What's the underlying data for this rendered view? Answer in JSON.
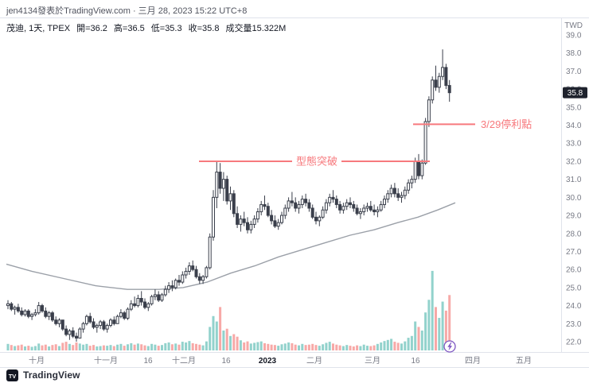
{
  "header": {
    "attribution": "jen4134發表於TradingView.com · 三月 28, 2023 15:22 UTC+8",
    "currency": "TWD"
  },
  "symbol": {
    "title": "茂迪, 1天, TPEX",
    "fields": [
      "開=36.2",
      "高=36.5",
      "低=35.3",
      "收=35.8",
      "成交量15.322M"
    ]
  },
  "footer": {
    "brand": "TradingView"
  },
  "chart_data": {
    "type": "candlestick",
    "symbol": "茂迪",
    "interval": "1天",
    "exchange": "TPEX",
    "last_ohlc": {
      "open": 36.2,
      "high": 36.5,
      "low": 35.3,
      "close": 35.8,
      "volume": "15.322M"
    },
    "current_price": {
      "value": "35.8",
      "price": 35.8
    },
    "y_axis": {
      "currency": "TWD",
      "min": 22.0,
      "max": 39.0,
      "labels": [
        "39.0",
        "38.0",
        "37.0",
        "36.0",
        "35.0",
        "34.0",
        "33.0",
        "32.0",
        "31.0",
        "30.0",
        "29.0",
        "28.0",
        "27.0",
        "26.0",
        "25.0",
        "24.0",
        "23.0",
        "22.0"
      ]
    },
    "x_ticks": [
      {
        "label": "十月",
        "x": 46,
        "strong": false
      },
      {
        "label": "十一月",
        "x": 133,
        "strong": false
      },
      {
        "label": "16",
        "x": 186,
        "strong": false
      },
      {
        "label": "十二月",
        "x": 231,
        "strong": false
      },
      {
        "label": "16",
        "x": 284,
        "strong": false
      },
      {
        "label": "2023",
        "x": 336,
        "strong": true
      },
      {
        "label": "二月",
        "x": 395,
        "strong": false
      },
      {
        "label": "三月",
        "x": 468,
        "strong": false
      },
      {
        "label": "16",
        "x": 522,
        "strong": false
      },
      {
        "label": "四月",
        "x": 594,
        "strong": false
      },
      {
        "label": "五月",
        "x": 658,
        "strong": false
      }
    ],
    "annotations": {
      "pattern_breakout": {
        "label": "型態突破",
        "price": 32.0,
        "x1": 250,
        "x2": 540,
        "label_x": 398
      },
      "take_profit": {
        "label": "3/29停利點",
        "price": 34.05,
        "x1": 519,
        "x2": 597,
        "label_x": 604
      }
    },
    "ma": [
      [
        8,
        26.3
      ],
      [
        40,
        25.9
      ],
      [
        80,
        25.5
      ],
      [
        120,
        25.1
      ],
      [
        160,
        24.9
      ],
      [
        200,
        24.9
      ],
      [
        230,
        25.0
      ],
      [
        260,
        25.3
      ],
      [
        290,
        25.8
      ],
      [
        320,
        26.2
      ],
      [
        350,
        26.7
      ],
      [
        380,
        27.1
      ],
      [
        410,
        27.5
      ],
      [
        440,
        27.9
      ],
      [
        470,
        28.2
      ],
      [
        500,
        28.6
      ],
      [
        525,
        28.9
      ],
      [
        550,
        29.3
      ],
      [
        572,
        29.7
      ]
    ],
    "candles": [
      [
        24.0,
        24.3,
        23.8,
        24.1,
        1.8
      ],
      [
        24.1,
        24.2,
        23.7,
        23.8,
        1.5
      ],
      [
        23.8,
        24.0,
        23.5,
        23.9,
        1.2
      ],
      [
        23.9,
        24.1,
        23.6,
        23.7,
        1.4
      ],
      [
        23.7,
        23.9,
        23.4,
        23.5,
        1.6
      ],
      [
        23.5,
        23.8,
        23.4,
        23.7,
        1.1
      ],
      [
        23.7,
        23.8,
        23.3,
        23.4,
        1.3
      ],
      [
        23.4,
        23.6,
        23.2,
        23.5,
        1.0
      ],
      [
        23.5,
        23.8,
        23.4,
        23.6,
        1.2
      ],
      [
        23.6,
        24.2,
        23.5,
        24.0,
        1.9
      ],
      [
        24.0,
        24.1,
        23.6,
        23.7,
        1.4
      ],
      [
        23.7,
        23.9,
        23.3,
        23.4,
        1.6
      ],
      [
        23.4,
        23.7,
        23.2,
        23.6,
        1.1
      ],
      [
        23.6,
        23.7,
        23.1,
        23.2,
        1.5
      ],
      [
        23.2,
        23.4,
        22.9,
        23.0,
        1.7
      ],
      [
        23.0,
        23.3,
        22.8,
        23.2,
        1.2
      ],
      [
        23.2,
        23.2,
        22.6,
        22.7,
        2.1
      ],
      [
        22.7,
        22.9,
        22.3,
        22.4,
        2.4
      ],
      [
        22.4,
        22.7,
        22.1,
        22.6,
        1.8
      ],
      [
        22.6,
        22.8,
        22.2,
        22.3,
        1.5
      ],
      [
        22.3,
        22.5,
        22.0,
        22.2,
        2.2
      ],
      [
        22.2,
        22.8,
        22.2,
        22.7,
        1.9
      ],
      [
        22.7,
        23.1,
        22.5,
        23.0,
        1.6
      ],
      [
        23.0,
        23.5,
        22.9,
        23.4,
        1.8
      ],
      [
        23.4,
        23.6,
        23.0,
        23.1,
        1.3
      ],
      [
        23.1,
        23.3,
        22.7,
        22.8,
        1.5
      ],
      [
        22.8,
        23.0,
        22.5,
        22.9,
        1.1
      ],
      [
        22.9,
        23.2,
        22.7,
        23.1,
        1.2
      ],
      [
        23.1,
        23.2,
        22.6,
        22.7,
        1.4
      ],
      [
        22.7,
        23.0,
        22.5,
        22.9,
        1.3
      ],
      [
        22.9,
        23.3,
        22.8,
        23.2,
        1.5
      ],
      [
        23.2,
        23.4,
        22.9,
        23.0,
        1.2
      ],
      [
        23.0,
        23.5,
        23.0,
        23.4,
        1.6
      ],
      [
        23.4,
        23.8,
        23.3,
        23.6,
        1.8
      ],
      [
        23.6,
        23.7,
        23.2,
        23.3,
        1.3
      ],
      [
        23.3,
        23.9,
        23.2,
        23.8,
        1.7
      ],
      [
        23.8,
        24.3,
        23.7,
        24.1,
        2.0
      ],
      [
        24.1,
        24.5,
        23.9,
        24.0,
        1.6
      ],
      [
        24.0,
        24.6,
        23.9,
        24.4,
        1.9
      ],
      [
        24.4,
        24.8,
        24.0,
        24.2,
        1.7
      ],
      [
        24.2,
        24.4,
        23.8,
        23.9,
        1.4
      ],
      [
        23.9,
        24.2,
        23.7,
        24.1,
        1.2
      ],
      [
        24.1,
        24.6,
        24.0,
        24.5,
        1.8
      ],
      [
        24.5,
        24.9,
        24.3,
        24.6,
        1.6
      ],
      [
        24.6,
        24.8,
        24.2,
        24.3,
        1.3
      ],
      [
        24.3,
        24.7,
        24.2,
        24.6,
        1.5
      ],
      [
        24.6,
        25.1,
        24.5,
        24.9,
        2.0
      ],
      [
        24.9,
        25.3,
        24.7,
        25.1,
        2.2
      ],
      [
        25.1,
        25.4,
        24.8,
        25.0,
        1.7
      ],
      [
        25.0,
        25.5,
        24.9,
        25.4,
        1.9
      ],
      [
        25.4,
        25.7,
        25.1,
        25.3,
        1.6
      ],
      [
        25.3,
        25.9,
        25.2,
        25.7,
        2.4
      ],
      [
        25.7,
        26.1,
        25.5,
        25.9,
        2.2
      ],
      [
        25.9,
        26.4,
        25.7,
        26.2,
        2.6
      ],
      [
        26.2,
        26.5,
        25.9,
        26.0,
        2.0
      ],
      [
        26.0,
        26.2,
        25.5,
        25.6,
        1.8
      ],
      [
        25.6,
        25.8,
        25.2,
        25.4,
        1.6
      ],
      [
        25.4,
        25.7,
        25.2,
        25.6,
        1.4
      ],
      [
        25.6,
        26.2,
        25.5,
        26.1,
        2.5
      ],
      [
        26.1,
        28.0,
        26.0,
        27.8,
        6.5
      ],
      [
        27.8,
        30.4,
        27.6,
        30.0,
        9.5
      ],
      [
        30.0,
        32.0,
        29.4,
        31.4,
        8.0
      ],
      [
        31.4,
        31.9,
        30.2,
        30.5,
        12.0
      ],
      [
        30.5,
        31.4,
        29.8,
        31.0,
        5.5
      ],
      [
        31.0,
        31.2,
        29.6,
        29.8,
        6.0
      ],
      [
        29.8,
        30.6,
        29.3,
        30.2,
        4.0
      ],
      [
        30.2,
        30.4,
        28.9,
        29.1,
        4.5
      ],
      [
        29.1,
        29.5,
        28.3,
        28.5,
        3.8
      ],
      [
        28.5,
        29.0,
        28.1,
        28.8,
        2.8
      ],
      [
        28.8,
        29.2,
        28.4,
        28.6,
        2.2
      ],
      [
        28.6,
        28.9,
        28.0,
        28.2,
        2.5
      ],
      [
        28.2,
        28.7,
        28.0,
        28.5,
        1.9
      ],
      [
        28.5,
        29.0,
        28.3,
        28.8,
        2.1
      ],
      [
        28.8,
        29.4,
        28.6,
        29.2,
        2.3
      ],
      [
        29.2,
        29.8,
        29.0,
        29.6,
        2.5
      ],
      [
        29.6,
        30.1,
        29.3,
        29.5,
        2.0
      ],
      [
        29.5,
        29.7,
        28.9,
        29.0,
        1.8
      ],
      [
        29.0,
        29.3,
        28.5,
        28.7,
        1.6
      ],
      [
        28.7,
        29.0,
        28.3,
        28.4,
        1.5
      ],
      [
        28.4,
        28.8,
        28.2,
        28.6,
        1.3
      ],
      [
        28.6,
        29.2,
        28.5,
        29.0,
        1.7
      ],
      [
        29.0,
        29.6,
        28.8,
        29.4,
        1.9
      ],
      [
        29.4,
        30.0,
        29.2,
        29.8,
        2.2
      ],
      [
        29.8,
        30.3,
        29.5,
        29.7,
        2.0
      ],
      [
        29.7,
        30.0,
        29.2,
        29.4,
        1.6
      ],
      [
        29.4,
        29.8,
        29.1,
        29.6,
        1.4
      ],
      [
        29.6,
        30.1,
        29.4,
        29.9,
        1.8
      ],
      [
        29.9,
        30.2,
        29.5,
        29.7,
        1.5
      ],
      [
        29.7,
        29.9,
        29.2,
        29.4,
        1.6
      ],
      [
        29.4,
        29.6,
        28.8,
        28.9,
        1.8
      ],
      [
        28.9,
        29.2,
        28.5,
        28.7,
        1.5
      ],
      [
        28.7,
        29.0,
        28.4,
        28.9,
        1.3
      ],
      [
        28.9,
        29.5,
        28.8,
        29.3,
        1.7
      ],
      [
        29.3,
        29.9,
        29.1,
        29.7,
        2.1
      ],
      [
        29.7,
        30.2,
        29.5,
        30.0,
        2.4
      ],
      [
        30.0,
        30.4,
        29.7,
        29.9,
        1.9
      ],
      [
        29.9,
        30.1,
        29.4,
        29.6,
        1.6
      ],
      [
        29.6,
        29.8,
        29.1,
        29.3,
        1.4
      ],
      [
        29.3,
        29.7,
        29.1,
        29.5,
        1.2
      ],
      [
        29.5,
        29.9,
        29.3,
        29.7,
        1.5
      ],
      [
        29.7,
        30.0,
        29.4,
        29.6,
        1.3
      ],
      [
        29.6,
        29.8,
        29.2,
        29.4,
        1.1
      ],
      [
        29.4,
        29.6,
        29.0,
        29.1,
        1.4
      ],
      [
        29.1,
        29.4,
        28.8,
        29.2,
        1.2
      ],
      [
        29.2,
        29.6,
        29.0,
        29.4,
        1.6
      ],
      [
        29.4,
        29.7,
        29.2,
        29.5,
        1.3
      ],
      [
        29.5,
        29.8,
        29.2,
        29.3,
        1.2
      ],
      [
        29.3,
        29.6,
        29.0,
        29.2,
        1.4
      ],
      [
        29.2,
        29.5,
        28.9,
        29.3,
        1.8
      ],
      [
        29.3,
        29.8,
        29.2,
        29.6,
        2.2
      ],
      [
        29.6,
        30.1,
        29.4,
        29.9,
        2.6
      ],
      [
        29.9,
        30.4,
        29.7,
        30.2,
        2.9
      ],
      [
        30.2,
        30.7,
        30.0,
        30.5,
        3.2
      ],
      [
        30.5,
        30.8,
        30.0,
        30.2,
        2.4
      ],
      [
        30.2,
        30.5,
        29.8,
        30.0,
        2.1
      ],
      [
        30.0,
        30.3,
        29.7,
        30.1,
        1.9
      ],
      [
        30.1,
        30.6,
        29.9,
        30.4,
        2.5
      ],
      [
        30.4,
        31.0,
        30.2,
        30.8,
        3.5
      ],
      [
        30.8,
        31.2,
        30.5,
        31.0,
        4.0
      ],
      [
        31.0,
        32.2,
        30.8,
        32.0,
        8.0
      ],
      [
        32.0,
        32.4,
        31.0,
        31.2,
        6.5
      ],
      [
        31.2,
        32.1,
        31.0,
        31.9,
        5.5
      ],
      [
        31.9,
        34.4,
        31.8,
        34.2,
        10.5
      ],
      [
        34.2,
        35.6,
        33.9,
        35.4,
        14.0
      ],
      [
        35.4,
        36.7,
        35.2,
        36.5,
        22.0
      ],
      [
        36.5,
        37.3,
        35.9,
        36.1,
        12.0
      ],
      [
        36.1,
        36.9,
        35.8,
        36.7,
        9.0
      ],
      [
        36.7,
        38.2,
        36.5,
        37.2,
        13.5
      ],
      [
        37.2,
        37.4,
        36.0,
        36.2,
        11.0
      ],
      [
        36.2,
        36.5,
        35.3,
        35.8,
        15.322
      ]
    ],
    "colors": {
      "vol_up": "#26a69a",
      "vol_down": "#ef5350",
      "candle": "#3a3f4b",
      "candle_up_fill": "#ffffff",
      "ma": "#9ba0a8",
      "annotation": "#f7797d",
      "badge_bg": "#1e222d",
      "badge_text": "#ffffff",
      "axis_text": "#787b86",
      "axis_text_strong": "#131722",
      "border": "#e0e3eb",
      "event_icon": "#7e57c2"
    }
  }
}
